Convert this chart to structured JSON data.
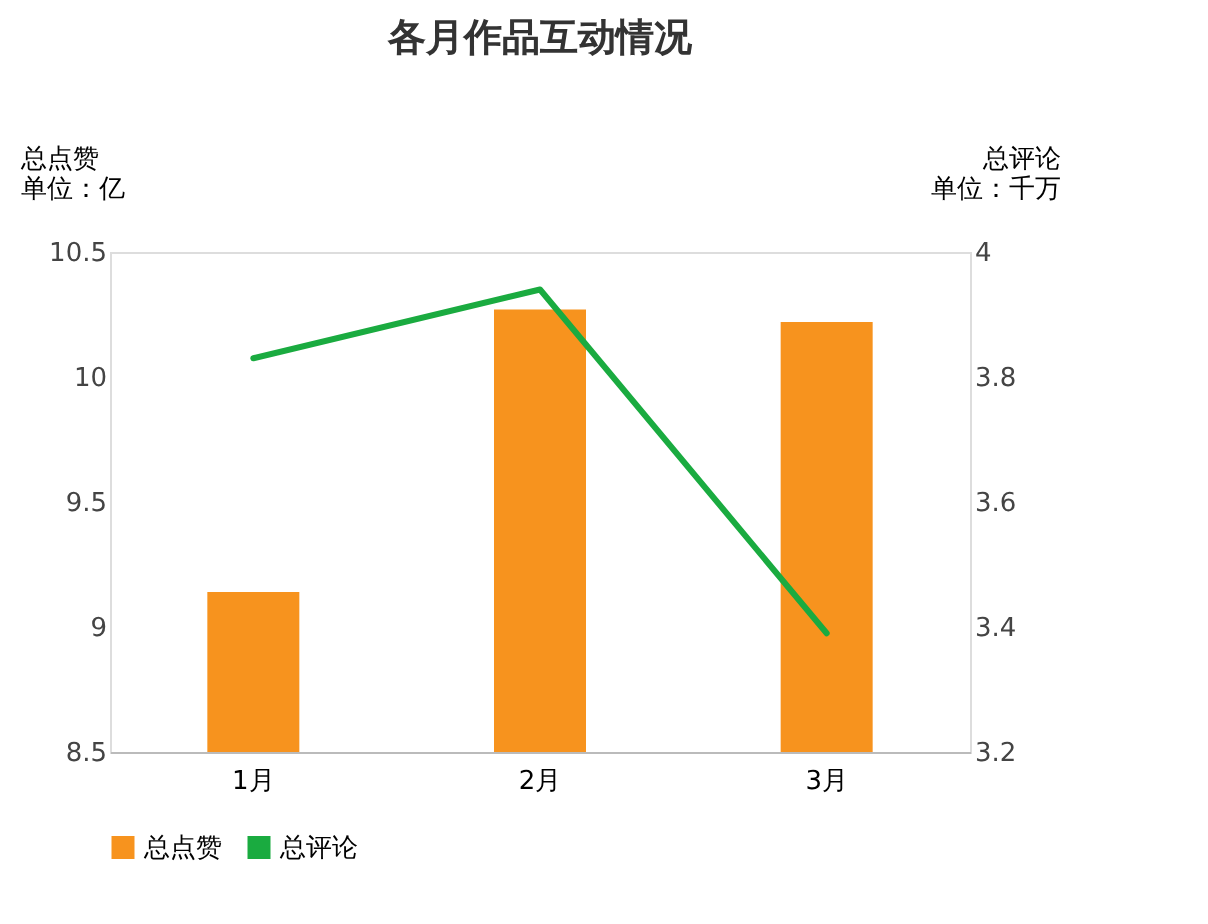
{
  "chart_data": {
    "type": "bar",
    "title": "各月作品互动情况",
    "categories": [
      "1月",
      "2月",
      "3月"
    ],
    "ylabel": "总点赞",
    "y2label": "总评论",
    "annotations": [
      "单位：亿",
      "单位：千万"
    ],
    "series": [
      {
        "name": "总点赞",
        "color": "#f7931e",
        "values": [
          9.14,
          10.27,
          10.22
        ]
      },
      {
        "name": "总评论",
        "type": "line",
        "axis": "y2",
        "color": "#1aab40",
        "values": [
          3.83,
          3.94,
          3.39
        ]
      }
    ],
    "ylim": [
      8.5,
      10.5
    ],
    "yticks": [
      8.5,
      9,
      9.5,
      10,
      10.5
    ],
    "y2lim": [
      3.2,
      4
    ],
    "y2ticks": [
      3.2,
      3.4,
      3.6,
      3.8,
      4
    ],
    "grid": false,
    "legend": "bottom",
    "marker": "none",
    "line_style": "solid"
  }
}
